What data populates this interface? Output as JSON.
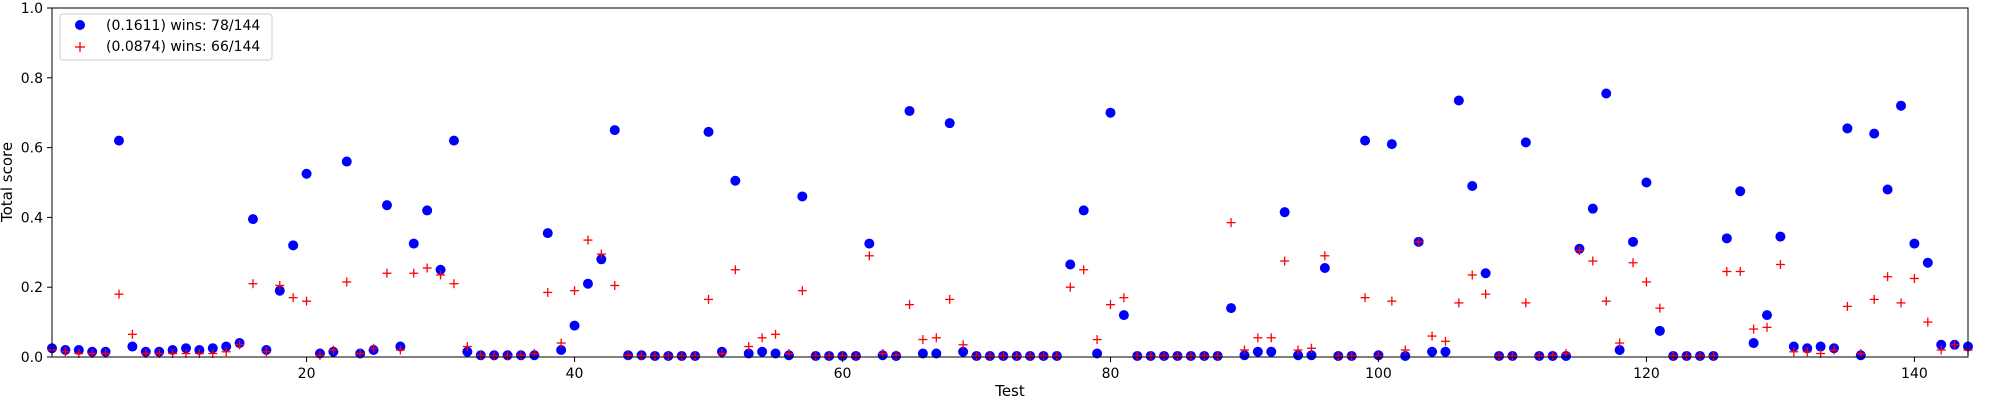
{
  "chart_data": {
    "type": "scatter",
    "title": "",
    "xlabel": "Test",
    "ylabel": "Total score",
    "xlim": [
      1,
      144
    ],
    "ylim": [
      0,
      1.0
    ],
    "xticks": [
      20,
      40,
      60,
      80,
      100,
      120,
      140
    ],
    "yticks": [
      0.0,
      0.2,
      0.4,
      0.6,
      0.8,
      1.0
    ],
    "xtick_labels": [
      "20",
      "40",
      "60",
      "80",
      "100",
      "120",
      "140"
    ],
    "ytick_labels": [
      "0.0",
      "0.2",
      "0.4",
      "0.6",
      "0.8",
      "1.0"
    ],
    "grid": false,
    "legend_position": "top-left",
    "series": [
      {
        "name": "(0.1611) wins: 78/144",
        "marker": "circle",
        "color": "#0000ff",
        "x": [
          1,
          2,
          3,
          4,
          5,
          6,
          7,
          8,
          9,
          10,
          11,
          12,
          13,
          14,
          15,
          16,
          17,
          18,
          19,
          20,
          21,
          22,
          23,
          24,
          25,
          26,
          27,
          28,
          29,
          30,
          31,
          32,
          33,
          34,
          35,
          36,
          37,
          38,
          39,
          40,
          41,
          42,
          43,
          44,
          45,
          46,
          47,
          48,
          49,
          50,
          51,
          52,
          53,
          54,
          55,
          56,
          57,
          58,
          59,
          60,
          61,
          62,
          63,
          64,
          65,
          66,
          67,
          68,
          69,
          70,
          71,
          72,
          73,
          74,
          75,
          76,
          77,
          78,
          79,
          80,
          81,
          82,
          83,
          84,
          85,
          86,
          87,
          88,
          89,
          90,
          91,
          92,
          93,
          94,
          95,
          96,
          97,
          98,
          99,
          100,
          101,
          102,
          103,
          104,
          105,
          106,
          107,
          108,
          109,
          110,
          111,
          112,
          113,
          114,
          115,
          116,
          117,
          118,
          119,
          120,
          121,
          122,
          123,
          124,
          125,
          126,
          127,
          128,
          129,
          130,
          131,
          132,
          133,
          134,
          135,
          136,
          137,
          138,
          139,
          140,
          141,
          142,
          143,
          144
        ],
        "y": [
          0.025,
          0.02,
          0.02,
          0.015,
          0.015,
          0.62,
          0.03,
          0.015,
          0.015,
          0.02,
          0.025,
          0.02,
          0.025,
          0.03,
          0.04,
          0.395,
          0.02,
          0.19,
          0.32,
          0.525,
          0.01,
          0.015,
          0.56,
          0.01,
          0.02,
          0.435,
          0.03,
          0.325,
          0.42,
          0.25,
          0.62,
          0.015,
          0.005,
          0.005,
          0.005,
          0.005,
          0.005,
          0.355,
          0.02,
          0.09,
          0.21,
          0.28,
          0.65,
          0.005,
          0.005,
          0.003,
          0.003,
          0.003,
          0.003,
          0.645,
          0.015,
          0.505,
          0.01,
          0.015,
          0.01,
          0.005,
          0.46,
          0.003,
          0.003,
          0.003,
          0.003,
          0.325,
          0.005,
          0.003,
          0.705,
          0.01,
          0.01,
          0.67,
          0.015,
          0.003,
          0.003,
          0.003,
          0.003,
          0.003,
          0.003,
          0.003,
          0.265,
          0.42,
          0.01,
          0.7,
          0.12,
          0.003,
          0.003,
          0.003,
          0.003,
          0.003,
          0.003,
          0.003,
          0.14,
          0.005,
          0.015,
          0.015,
          0.415,
          0.005,
          0.005,
          0.255,
          0.003,
          0.003,
          0.62,
          0.005,
          0.61,
          0.003,
          0.33,
          0.015,
          0.015,
          0.735,
          0.49,
          0.24,
          0.003,
          0.003,
          0.615,
          0.003,
          0.003,
          0.003,
          0.31,
          0.425,
          0.755,
          0.02,
          0.33,
          0.5,
          0.075,
          0.003,
          0.003,
          0.003,
          0.003,
          0.34,
          0.475,
          0.04,
          0.12,
          0.345,
          0.03,
          0.025,
          0.03,
          0.025,
          0.655,
          0.005,
          0.64,
          0.48,
          0.72,
          0.325,
          0.27,
          0.035,
          0.035,
          0.03
        ]
      },
      {
        "name": "(0.0874) wins: 66/144",
        "marker": "plus",
        "color": "#ff0000",
        "x": [
          1,
          2,
          3,
          4,
          5,
          6,
          7,
          8,
          9,
          10,
          11,
          12,
          13,
          14,
          15,
          16,
          17,
          18,
          19,
          20,
          21,
          22,
          23,
          24,
          25,
          26,
          27,
          28,
          29,
          30,
          31,
          32,
          33,
          34,
          35,
          36,
          37,
          38,
          39,
          40,
          41,
          42,
          43,
          44,
          45,
          46,
          47,
          48,
          49,
          50,
          51,
          52,
          53,
          54,
          55,
          56,
          57,
          58,
          59,
          60,
          61,
          62,
          63,
          64,
          65,
          66,
          67,
          68,
          69,
          70,
          71,
          72,
          73,
          74,
          75,
          76,
          77,
          78,
          79,
          80,
          81,
          82,
          83,
          84,
          85,
          86,
          87,
          88,
          89,
          90,
          91,
          92,
          93,
          94,
          95,
          96,
          97,
          98,
          99,
          100,
          101,
          102,
          103,
          104,
          105,
          106,
          107,
          108,
          109,
          110,
          111,
          112,
          113,
          114,
          115,
          116,
          117,
          118,
          119,
          120,
          121,
          122,
          123,
          124,
          125,
          126,
          127,
          128,
          129,
          130,
          131,
          132,
          133,
          134,
          135,
          136,
          137,
          138,
          139,
          140,
          141,
          142,
          143,
          144
        ],
        "y": [
          0.02,
          0.015,
          0.01,
          0.01,
          0.01,
          0.18,
          0.065,
          0.01,
          0.01,
          0.01,
          0.01,
          0.01,
          0.01,
          0.015,
          0.035,
          0.21,
          0.015,
          0.205,
          0.17,
          0.16,
          0.005,
          0.02,
          0.215,
          0.01,
          0.025,
          0.24,
          0.02,
          0.24,
          0.255,
          0.235,
          0.21,
          0.03,
          0.005,
          0.003,
          0.003,
          0.005,
          0.01,
          0.185,
          0.04,
          0.19,
          0.335,
          0.295,
          0.205,
          0.005,
          0.003,
          0.003,
          0.003,
          0.003,
          0.003,
          0.165,
          0.01,
          0.25,
          0.03,
          0.055,
          0.065,
          0.01,
          0.19,
          0.003,
          0.003,
          0.003,
          0.003,
          0.29,
          0.01,
          0.005,
          0.15,
          0.05,
          0.055,
          0.165,
          0.035,
          0.003,
          0.003,
          0.003,
          0.003,
          0.003,
          0.003,
          0.003,
          0.2,
          0.25,
          0.05,
          0.15,
          0.17,
          0.003,
          0.003,
          0.003,
          0.003,
          0.003,
          0.003,
          0.003,
          0.385,
          0.02,
          0.055,
          0.055,
          0.275,
          0.02,
          0.025,
          0.29,
          0.003,
          0.003,
          0.17,
          0.003,
          0.16,
          0.02,
          0.33,
          0.06,
          0.045,
          0.155,
          0.235,
          0.18,
          0.003,
          0.003,
          0.155,
          0.003,
          0.005,
          0.01,
          0.305,
          0.275,
          0.16,
          0.04,
          0.27,
          0.215,
          0.14,
          0.003,
          0.003,
          0.003,
          0.003,
          0.245,
          0.245,
          0.08,
          0.085,
          0.265,
          0.015,
          0.015,
          0.01,
          0.02,
          0.145,
          0.01,
          0.165,
          0.23,
          0.155,
          0.225,
          0.1,
          0.02,
          0.035,
          0.02
        ]
      }
    ]
  }
}
